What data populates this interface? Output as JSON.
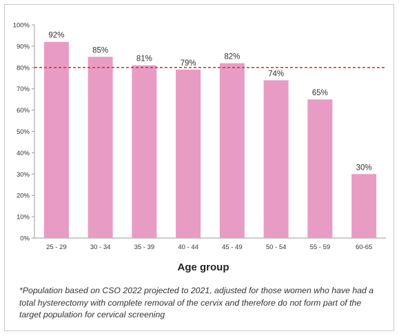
{
  "chart_data": {
    "type": "bar",
    "categories": [
      "25 - 29",
      "30 - 34",
      "35 - 39",
      "40 - 44",
      "45 - 49",
      "50 - 54",
      "55 - 59",
      "60-65"
    ],
    "values": [
      92,
      85,
      81,
      79,
      82,
      74,
      65,
      30
    ],
    "value_labels": [
      "92%",
      "85%",
      "81%",
      "79%",
      "82%",
      "74%",
      "65%",
      "30%"
    ],
    "xlabel": "Age group",
    "ylabel": "",
    "ylim": [
      0,
      100
    ],
    "yticks": [
      0,
      10,
      20,
      30,
      40,
      50,
      60,
      70,
      80,
      90,
      100
    ],
    "ytick_labels": [
      "0%",
      "10%",
      "20%",
      "30%",
      "40%",
      "50%",
      "60%",
      "70%",
      "80%",
      "90%",
      "100%"
    ],
    "target_line": 80,
    "grid": false,
    "bar_color": "#e99cc3",
    "target_line_color": "#e03030"
  },
  "footnote": "*Population based on CSO 2022 projected to 2021, adjusted for those women who have had a total hysterectomy with complete removal of the cervix and therefore do not form part of the target population for cervical screening"
}
